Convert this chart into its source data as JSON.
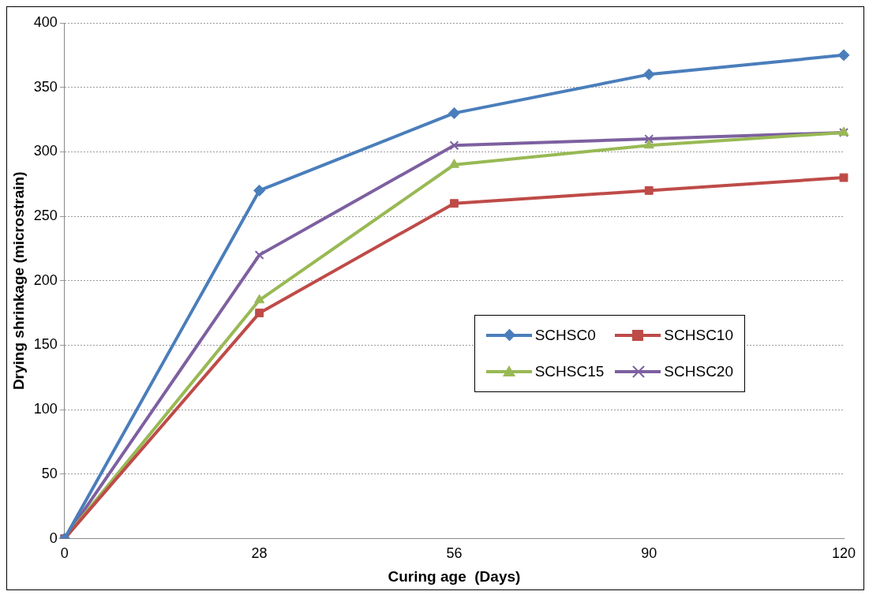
{
  "chart_data": {
    "type": "line",
    "xlabel": "Curing age  (Days)",
    "ylabel": "Drying shrinkage (microstrain)",
    "categories": [
      "0",
      "28",
      "56",
      "90",
      "120"
    ],
    "series": [
      {
        "name": "SCHSC0",
        "color": "#4a7ebb",
        "marker": "diamond",
        "values": [
          0,
          270,
          330,
          360,
          375
        ]
      },
      {
        "name": "SCHSC10",
        "color": "#be4b48",
        "marker": "square",
        "values": [
          0,
          175,
          260,
          270,
          280
        ]
      },
      {
        "name": "SCHSC15",
        "color": "#98b954",
        "marker": "triangle",
        "values": [
          0,
          185,
          290,
          305,
          315
        ]
      },
      {
        "name": "SCHSC20",
        "color": "#7d60a0",
        "marker": "cross",
        "values": [
          0,
          220,
          305,
          310,
          315
        ]
      }
    ],
    "ylim": [
      0,
      400
    ],
    "yticks": [
      0,
      50,
      100,
      150,
      200,
      250,
      300,
      350,
      400
    ],
    "grid": "y",
    "legend": "right",
    "line_style": "solid"
  }
}
